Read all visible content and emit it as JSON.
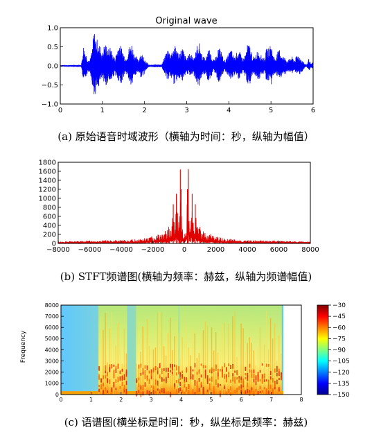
{
  "colors": {
    "wave": "#0000ff",
    "spectrum": "#e00000"
  },
  "chart_data": [
    {
      "type": "line",
      "title": "Original wave",
      "caption": "(a) 原始语音时域波形（横轴为时间：秒，纵轴为幅值）",
      "xlim": [
        0,
        6
      ],
      "ylim": [
        -1.0,
        1.0
      ],
      "xticks": [
        "0",
        "1",
        "2",
        "3",
        "4",
        "5",
        "6"
      ],
      "yticks": [
        "1.0",
        "0.5",
        "0.0",
        "−0.5",
        "−1.0"
      ],
      "envelope": {
        "t": [
          0,
          0.5,
          0.55,
          0.6,
          0.65,
          0.7,
          0.75,
          0.8,
          0.85,
          0.9,
          0.95,
          1.0,
          1.05,
          1.1,
          1.15,
          1.2,
          1.25,
          1.3,
          1.35,
          1.4,
          1.45,
          1.5,
          1.55,
          1.6,
          1.65,
          1.7,
          1.75,
          1.8,
          1.85,
          1.9,
          1.95,
          2.0,
          2.05,
          2.1,
          2.2,
          2.3,
          2.4,
          2.5,
          2.55,
          2.6,
          2.65,
          2.7,
          2.75,
          2.8,
          2.85,
          2.9,
          2.95,
          3.0,
          3.05,
          3.1,
          3.15,
          3.2,
          3.25,
          3.3,
          3.35,
          3.4,
          3.45,
          3.5,
          3.55,
          3.6,
          3.65,
          3.7,
          3.75,
          3.8,
          3.85,
          3.9,
          3.95,
          4.0,
          4.05,
          4.1,
          4.15,
          4.2,
          4.25,
          4.3,
          4.35,
          4.4,
          4.45,
          4.5,
          4.55,
          4.6,
          4.65,
          4.7,
          4.75,
          4.8,
          4.85,
          4.9,
          4.95,
          5.0,
          5.05,
          5.1,
          5.15,
          5.2,
          5.25,
          5.3,
          5.35,
          5.4,
          5.45,
          5.5,
          5.55,
          5.6,
          5.65,
          5.7,
          5.75,
          5.8,
          5.85,
          5.9,
          5.95,
          6.0
        ],
        "upper": [
          0.02,
          0.03,
          0.55,
          0.35,
          0.2,
          0.15,
          0.4,
          0.95,
          0.75,
          0.65,
          0.5,
          0.35,
          0.6,
          0.55,
          0.45,
          0.5,
          0.3,
          0.2,
          0.45,
          0.6,
          0.5,
          0.35,
          0.2,
          0.35,
          0.55,
          0.6,
          0.35,
          0.25,
          0.15,
          0.35,
          0.3,
          0.2,
          0.1,
          0.03,
          0.03,
          0.05,
          0.03,
          0.3,
          0.45,
          0.35,
          0.4,
          0.55,
          0.5,
          0.35,
          0.4,
          0.5,
          0.3,
          0.2,
          0.3,
          0.35,
          0.25,
          0.3,
          0.55,
          0.6,
          0.35,
          0.25,
          0.2,
          0.45,
          0.4,
          0.25,
          0.15,
          0.25,
          0.5,
          0.45,
          0.3,
          0.15,
          0.2,
          0.35,
          0.45,
          0.3,
          0.25,
          0.4,
          0.4,
          0.25,
          0.2,
          0.35,
          0.6,
          0.55,
          0.3,
          0.2,
          0.35,
          0.45,
          0.3,
          0.25,
          0.2,
          0.5,
          0.45,
          0.6,
          0.3,
          0.2,
          0.35,
          0.45,
          0.3,
          0.25,
          0.2,
          0.15,
          0.2,
          0.25,
          0.15,
          0.25,
          0.3,
          0.2,
          0.15,
          0.05,
          0.04,
          0.2,
          0.05,
          0.1
        ],
        "lower": [
          0.02,
          0.03,
          0.55,
          0.3,
          0.2,
          0.15,
          0.4,
          0.85,
          0.7,
          0.6,
          0.45,
          0.35,
          0.55,
          0.5,
          0.4,
          0.45,
          0.3,
          0.2,
          0.4,
          0.55,
          0.45,
          0.3,
          0.2,
          0.3,
          0.5,
          0.55,
          0.3,
          0.25,
          0.15,
          0.3,
          0.3,
          0.2,
          0.1,
          0.03,
          0.03,
          0.05,
          0.03,
          0.25,
          0.4,
          0.3,
          0.35,
          0.5,
          0.45,
          0.3,
          0.35,
          0.45,
          0.3,
          0.2,
          0.25,
          0.3,
          0.25,
          0.3,
          0.5,
          0.55,
          0.3,
          0.25,
          0.2,
          0.4,
          0.35,
          0.25,
          0.15,
          0.25,
          0.45,
          0.4,
          0.25,
          0.15,
          0.2,
          0.3,
          0.4,
          0.3,
          0.25,
          0.35,
          0.35,
          0.25,
          0.2,
          0.3,
          0.55,
          0.5,
          0.3,
          0.2,
          0.3,
          0.4,
          0.3,
          0.25,
          0.2,
          0.45,
          0.4,
          0.55,
          0.3,
          0.2,
          0.3,
          0.4,
          0.3,
          0.25,
          0.2,
          0.15,
          0.2,
          0.2,
          0.15,
          0.2,
          0.25,
          0.2,
          0.15,
          0.05,
          0.04,
          0.15,
          0.05,
          0.1
        ]
      }
    },
    {
      "type": "line",
      "caption": "(b) STFT频谱图(横轴为频率：赫兹，纵轴为频谱幅值)",
      "xlim": [
        -8000,
        8000
      ],
      "ylim": [
        0,
        1800
      ],
      "xticks": [
        "−8000",
        "−6000",
        "−4000",
        "−2000",
        "0",
        "2000",
        "4000",
        "6000",
        "8000"
      ],
      "yticks": [
        "1800",
        "1600",
        "1400",
        "1200",
        "1000",
        "800",
        "600",
        "400",
        "200",
        "0"
      ],
      "peaks": {
        "freq": [
          -8000,
          -7000,
          -6000,
          -5000,
          -4000,
          -3000,
          -2500,
          -2000,
          -1600,
          -1300,
          -1100,
          -900,
          -800,
          -700,
          -600,
          -500,
          -400,
          -300,
          -250,
          -200,
          -150,
          -100,
          -50,
          0,
          50,
          100,
          150,
          200,
          250,
          300,
          400,
          500,
          600,
          700,
          800,
          900,
          1100,
          1300,
          1600,
          2000,
          2500,
          3000,
          4000,
          5000,
          6000,
          7000,
          8000
        ],
        "magnitude": [
          40,
          50,
          60,
          70,
          70,
          100,
          120,
          170,
          230,
          260,
          320,
          420,
          310,
          870,
          350,
          1100,
          600,
          380,
          1640,
          1200,
          500,
          350,
          250,
          180,
          250,
          350,
          500,
          1200,
          1650,
          380,
          600,
          1100,
          350,
          870,
          310,
          420,
          320,
          260,
          230,
          170,
          120,
          100,
          70,
          70,
          60,
          50,
          40
        ]
      }
    },
    {
      "type": "heatmap",
      "caption": "(c) 语谱图(横坐标是时间：秒，纵坐标是频率：赫兹)",
      "ylabel": "Frequency",
      "xlim": [
        0,
        8
      ],
      "ylim": [
        0,
        8000
      ],
      "data_xlim": [
        0,
        7.4
      ],
      "xticks": [
        "0",
        "1",
        "2",
        "3",
        "4",
        "5",
        "6",
        "7",
        "8"
      ],
      "yticks": [
        "8000",
        "7000",
        "6000",
        "5000",
        "4000",
        "3000",
        "2000",
        "1000",
        "0"
      ],
      "colorbar": {
        "range": [
          -150,
          -30
        ],
        "ticks": [
          "−30",
          "−45",
          "−60",
          "−75",
          "−90",
          "−105",
          "−120",
          "−135",
          "−150"
        ]
      },
      "speech_regions": [
        [
          1.25,
          2.2
        ],
        [
          2.5,
          3.9
        ],
        [
          3.95,
          7.35
        ]
      ]
    }
  ]
}
